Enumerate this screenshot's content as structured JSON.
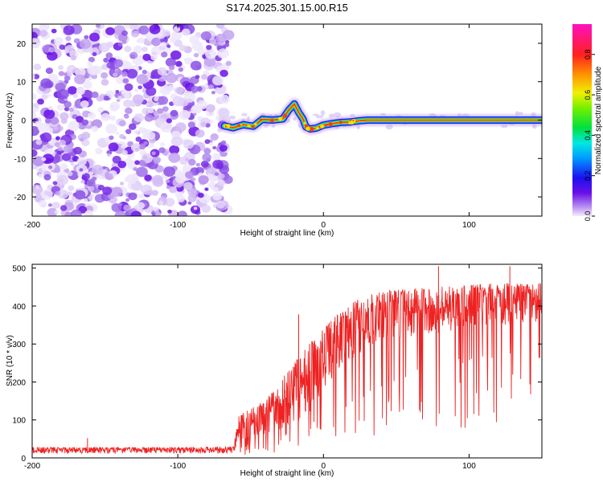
{
  "title": "S174.2025.301.15.00.R15",
  "colors": {
    "snr_line": "#ee2222",
    "noise_violet": "#8a2be2",
    "axis": "#000000"
  },
  "chart_data": [
    {
      "type": "heatmap",
      "xlabel": "Height of straight line (km)",
      "ylabel": "Frequency (Hz)",
      "xlim": [
        -200,
        150
      ],
      "ylim": [
        -25,
        25
      ],
      "xticks": [
        -200,
        -100,
        0,
        100
      ],
      "yticks": [
        -20,
        -10,
        0,
        10,
        20
      ],
      "colorbar": {
        "label": "Normalized spectral amplitude",
        "range": [
          0.0,
          0.95
        ],
        "ticks": [
          0.0,
          0.2,
          0.4,
          0.6,
          0.8
        ],
        "tick_labels": [
          "0.0",
          "0.2",
          "0.4",
          "0.6",
          "0.8"
        ]
      },
      "noise_region_x": [
        -200,
        -68
      ],
      "ridge": {
        "x": [
          -68,
          -62,
          -55,
          -48,
          -42,
          -35,
          -28,
          -24,
          -20,
          -17,
          -14,
          -12,
          -9,
          -5,
          0,
          6,
          12,
          18,
          24,
          30,
          40,
          60,
          100,
          150
        ],
        "freq": [
          -1.5,
          -2.0,
          -1.2,
          -1.6,
          0.2,
          0.0,
          0.3,
          2.5,
          4.2,
          2.0,
          0.3,
          -1.8,
          -2.3,
          -2.1,
          -1.3,
          -0.9,
          -0.6,
          -0.5,
          -0.2,
          0.0,
          0.0,
          0.0,
          0.0,
          0.0
        ]
      }
    },
    {
      "type": "line",
      "xlabel": "Height of straight line (km)",
      "ylabel": "SNR (10 * v/v)",
      "xlim": [
        -200,
        150
      ],
      "ylim": [
        0,
        510
      ],
      "xticks": [
        -200,
        -100,
        0,
        100
      ],
      "yticks": [
        0,
        100,
        200,
        300,
        400,
        500
      ],
      "series": [
        {
          "name": "SNR",
          "envelope_x": [
            -200,
            -150,
            -100,
            -62,
            -58,
            -50,
            -40,
            -30,
            -20,
            -10,
            0,
            10,
            20,
            30,
            40,
            60,
            80,
            100,
            120,
            150
          ],
          "envelope_low": [
            12,
            12,
            12,
            12,
            40,
            50,
            60,
            70,
            90,
            120,
            160,
            220,
            260,
            290,
            310,
            320,
            330,
            340,
            350,
            360
          ],
          "envelope_high": [
            28,
            28,
            28,
            30,
            110,
            130,
            150,
            200,
            250,
            300,
            340,
            380,
            410,
            430,
            440,
            445,
            450,
            455,
            460,
            460
          ],
          "spikes": [
            {
              "x": -162,
              "y": 52
            },
            {
              "x": -17,
              "y": 378
            },
            {
              "x": 79,
              "y": 505
            },
            {
              "x": 128,
              "y": 505
            }
          ]
        }
      ]
    }
  ]
}
